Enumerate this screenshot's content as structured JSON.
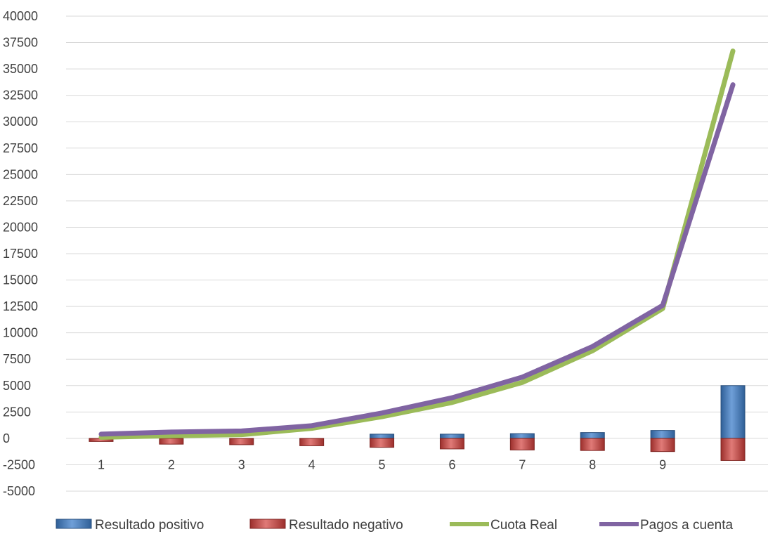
{
  "chart_data": {
    "type": "bar",
    "title": "",
    "xlabel": "",
    "ylabel": "",
    "ylim": [
      -5000,
      40000
    ],
    "ytick_step": 2500,
    "categories": [
      "1",
      "2",
      "3",
      "4",
      "5",
      "6",
      "7",
      "8",
      "9",
      ""
    ],
    "grid": true,
    "legend_position": "bottom",
    "series": [
      {
        "name": "Resultado positivo",
        "kind": "bar",
        "color": "#4f81bd",
        "values": [
          0,
          0,
          0,
          0,
          400,
          400,
          450,
          550,
          750,
          5000
        ]
      },
      {
        "name": "Resultado negativo",
        "kind": "bar",
        "color": "#c0504d",
        "values": [
          -300,
          -550,
          -600,
          -700,
          -850,
          -1000,
          -1100,
          -1150,
          -1250,
          -2100
        ]
      },
      {
        "name": "Cuota Real",
        "kind": "line",
        "color": "#9bbb59",
        "values": [
          100,
          250,
          350,
          950,
          2050,
          3400,
          5300,
          8300,
          12300,
          36700
        ]
      },
      {
        "name": "Pagos a cuenta",
        "kind": "line",
        "color": "#8064a2",
        "values": [
          400,
          600,
          700,
          1200,
          2400,
          3850,
          5800,
          8700,
          12600,
          33500
        ]
      }
    ]
  }
}
